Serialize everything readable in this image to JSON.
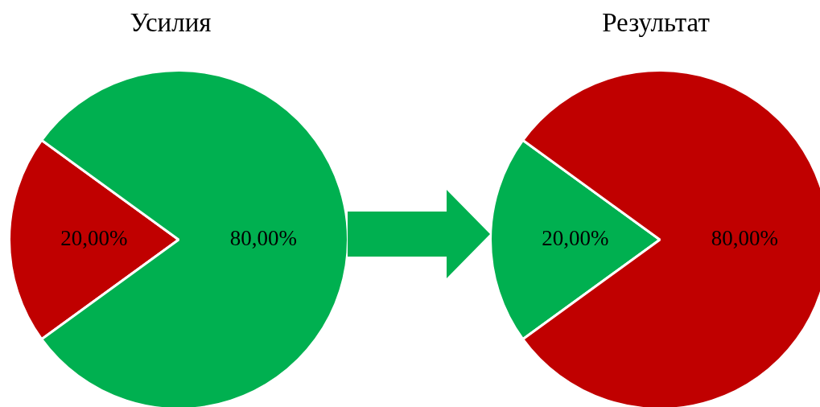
{
  "chart_data": [
    {
      "type": "pie",
      "title": "Усилия",
      "categories": [
        null,
        null
      ],
      "values": [
        20,
        80
      ],
      "colors": [
        "#c00000",
        "#00b050"
      ],
      "value_labels": [
        "20,00%",
        "80,00%"
      ]
    },
    {
      "type": "pie",
      "title": "Результат",
      "categories": [
        null,
        null
      ],
      "values": [
        20,
        80
      ],
      "colors": [
        "#00b050",
        "#c00000"
      ],
      "value_labels": [
        "20,00%",
        "80,00%"
      ]
    }
  ]
}
